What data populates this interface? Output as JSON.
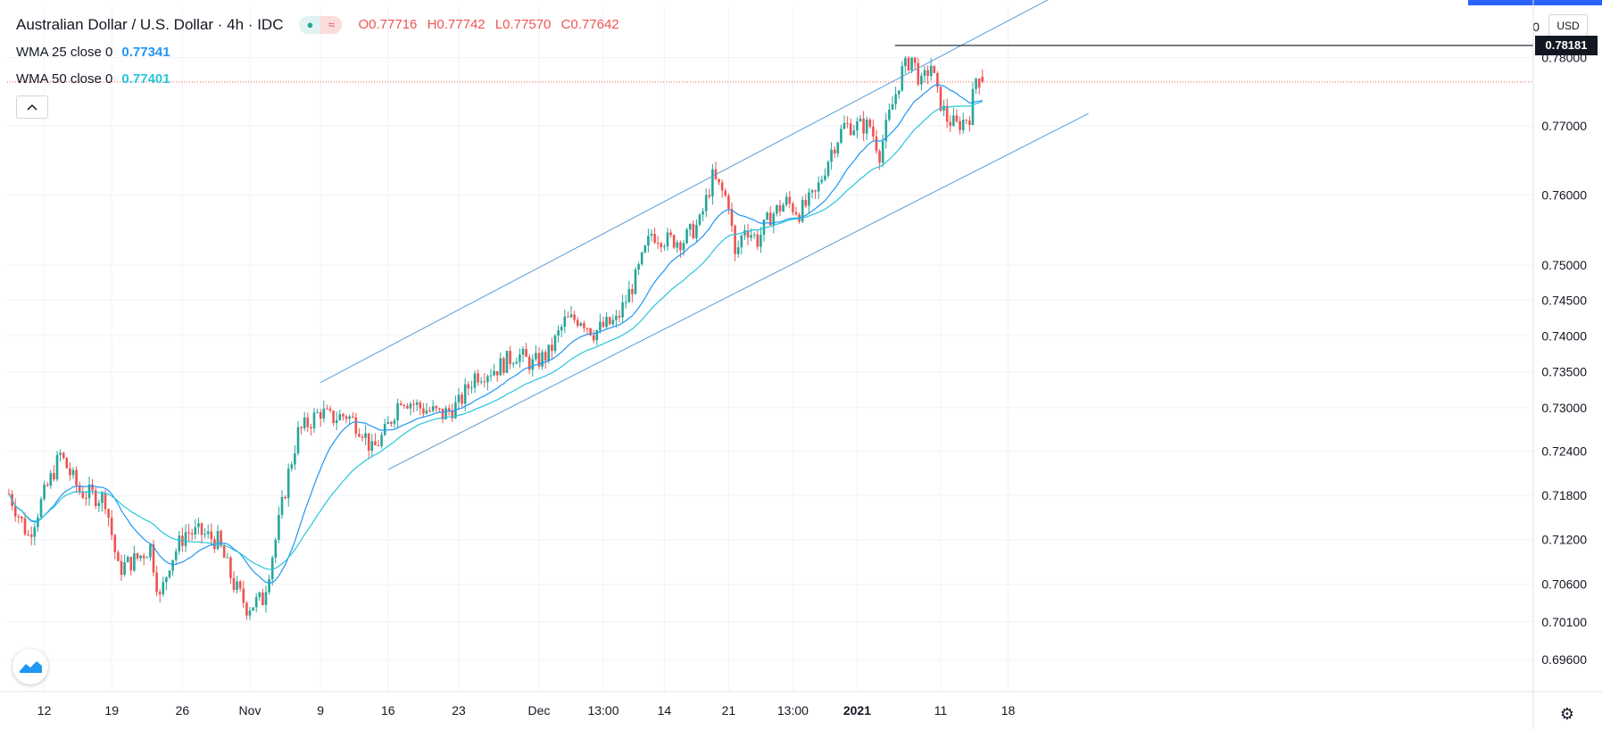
{
  "header": {
    "symbol": "Australian Dollar / U.S. Dollar · 4h · IDC",
    "ohlc": {
      "o_label": "O",
      "o": "0.77716",
      "h_label": "H",
      "h": "0.77742",
      "l_label": "L",
      "l": "0.77570",
      "c_label": "C",
      "c": "0.77642"
    },
    "icon_market_status": "dot-icon",
    "icon_wave": "≈",
    "indicators": [
      {
        "label": "WMA 25 close 0",
        "value": "0.77341",
        "color": "#2196f3"
      },
      {
        "label": "WMA 50 close 0",
        "value": "0.77401",
        "color": "#26c6da"
      }
    ]
  },
  "axis": {
    "currency": "USD",
    "top_cut_label": "0",
    "current_price_label": "0.78181"
  },
  "colors": {
    "up": "#26a69a",
    "down": "#ef5350",
    "channel": "#5b9bd5",
    "wma25": "#2196f3",
    "wma50": "#26c6da",
    "grid": "#f0f3fa",
    "priceline": "#ef5350"
  },
  "chart_data": {
    "type": "candlestick",
    "title": "Australian Dollar / U.S. Dollar · 4h · IDC",
    "ylim": [
      0.6918,
      0.7875
    ],
    "y_ticks": [
      "0.78000",
      "0.77000",
      "0.76000",
      "0.75000",
      "0.74500",
      "0.74000",
      "0.73500",
      "0.73000",
      "0.72400",
      "0.71800",
      "0.71200",
      "0.70600",
      "0.70100",
      "0.69600"
    ],
    "y_tick_values": [
      0.78,
      0.77,
      0.76,
      0.75,
      0.745,
      0.74,
      0.735,
      0.73,
      0.724,
      0.718,
      0.712,
      0.706,
      0.701,
      0.696
    ],
    "x_ticks": [
      {
        "label": "12",
        "bold": false,
        "idx": 11
      },
      {
        "label": "19",
        "bold": false,
        "idx": 32
      },
      {
        "label": "26",
        "bold": false,
        "idx": 54
      },
      {
        "label": "Nov",
        "bold": false,
        "idx": 75
      },
      {
        "label": "9",
        "bold": false,
        "idx": 97
      },
      {
        "label": "16",
        "bold": false,
        "idx": 118
      },
      {
        "label": "23",
        "bold": false,
        "idx": 140
      },
      {
        "label": "Dec",
        "bold": false,
        "idx": 165
      },
      {
        "label": "13:00",
        "bold": false,
        "idx": 185
      },
      {
        "label": "14",
        "bold": false,
        "idx": 204
      },
      {
        "label": "21",
        "bold": false,
        "idx": 224
      },
      {
        "label": "13:00",
        "bold": false,
        "idx": 244
      },
      {
        "label": "2021",
        "bold": true,
        "idx": 264
      },
      {
        "label": "11",
        "bold": false,
        "idx": 290
      },
      {
        "label": "18",
        "bold": false,
        "idx": 311
      }
    ],
    "n_slots": 323,
    "price_series": [
      [
        0,
        0.7182
      ],
      [
        6,
        0.7125
      ],
      [
        10,
        0.717
      ],
      [
        16,
        0.7235
      ],
      [
        22,
        0.7185
      ],
      [
        30,
        0.7175
      ],
      [
        34,
        0.708
      ],
      [
        40,
        0.7095
      ],
      [
        44,
        0.711
      ],
      [
        47,
        0.704
      ],
      [
        50,
        0.709
      ],
      [
        55,
        0.713
      ],
      [
        60,
        0.7128
      ],
      [
        65,
        0.7118
      ],
      [
        70,
        0.706
      ],
      [
        74,
        0.703
      ],
      [
        79,
        0.704
      ],
      [
        83,
        0.712
      ],
      [
        87,
        0.721
      ],
      [
        90,
        0.7265
      ],
      [
        97,
        0.7295
      ],
      [
        100,
        0.7285
      ],
      [
        105,
        0.729
      ],
      [
        110,
        0.727
      ],
      [
        113,
        0.724
      ],
      [
        117,
        0.7265
      ],
      [
        122,
        0.7315
      ],
      [
        128,
        0.73
      ],
      [
        135,
        0.729
      ],
      [
        140,
        0.7305
      ],
      [
        145,
        0.7345
      ],
      [
        152,
        0.7355
      ],
      [
        158,
        0.7375
      ],
      [
        163,
        0.736
      ],
      [
        168,
        0.7375
      ],
      [
        173,
        0.742
      ],
      [
        178,
        0.7425
      ],
      [
        182,
        0.7405
      ],
      [
        186,
        0.7415
      ],
      [
        189,
        0.742
      ],
      [
        195,
        0.748
      ],
      [
        200,
        0.7545
      ],
      [
        205,
        0.7535
      ],
      [
        210,
        0.7535
      ],
      [
        215,
        0.756
      ],
      [
        219,
        0.7625
      ],
      [
        224,
        0.759
      ],
      [
        226,
        0.751
      ],
      [
        229,
        0.7555
      ],
      [
        233,
        0.7535
      ],
      [
        237,
        0.757
      ],
      [
        242,
        0.759
      ],
      [
        246,
        0.7575
      ],
      [
        251,
        0.76
      ],
      [
        256,
        0.7665
      ],
      [
        260,
        0.77
      ],
      [
        264,
        0.77
      ],
      [
        268,
        0.77
      ],
      [
        271,
        0.766
      ],
      [
        274,
        0.7715
      ],
      [
        278,
        0.778
      ],
      [
        281,
        0.78
      ],
      [
        284,
        0.776
      ],
      [
        287,
        0.779
      ],
      [
        289,
        0.7745
      ],
      [
        292,
        0.771
      ],
      [
        295,
        0.77
      ],
      [
        299,
        0.7715
      ],
      [
        301,
        0.777
      ],
      [
        303,
        0.7764
      ]
    ],
    "wma25_end": 0.77341,
    "wma50_end": 0.77401,
    "channel_upper": [
      [
        97,
        0.7335
      ],
      [
        325,
        0.789
      ]
    ],
    "channel_lower": [
      [
        118,
        0.7215
      ],
      [
        336,
        0.7718
      ]
    ],
    "horizontal_level": {
      "value": 0.78181,
      "from_idx": 278
    },
    "current_price": 0.77642
  }
}
